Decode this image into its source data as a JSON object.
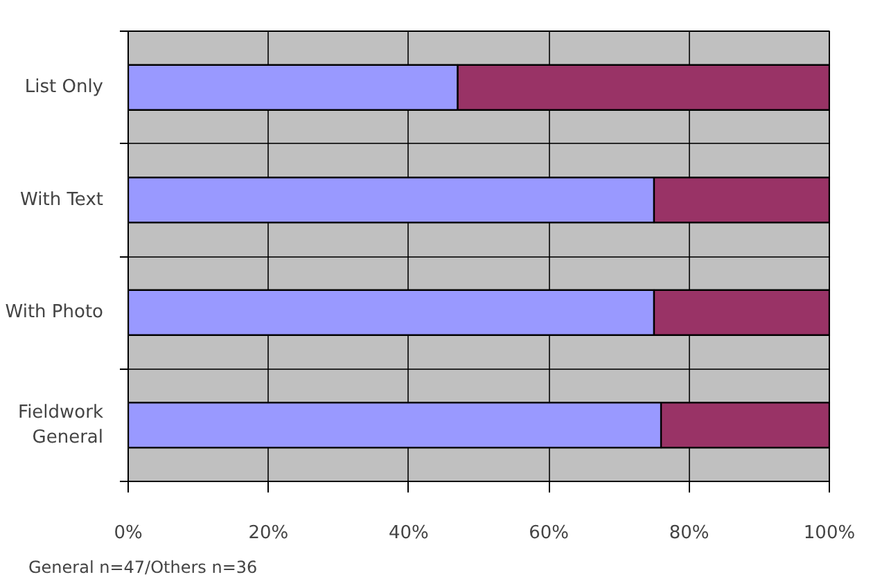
{
  "chart_data": {
    "type": "bar",
    "orientation": "horizontal",
    "stacked": true,
    "categories": [
      "List Only",
      "With Text",
      "With Photo",
      "Fieldwork\nGeneral"
    ],
    "series": [
      {
        "color": "#9999ff",
        "values": [
          47,
          75,
          75,
          76
        ]
      },
      {
        "color": "#993366",
        "values": [
          53,
          25,
          25,
          24
        ]
      }
    ],
    "xlim": [
      0,
      100
    ],
    "xticks": [
      {
        "value": 0,
        "label": "0%"
      },
      {
        "value": 20,
        "label": "20%"
      },
      {
        "value": 40,
        "label": "40%"
      },
      {
        "value": 60,
        "label": "60%"
      },
      {
        "value": 80,
        "label": "80%"
      },
      {
        "value": 100,
        "label": "100%"
      }
    ],
    "grid": true,
    "annotations": [
      "General n=47/Others n=36"
    ]
  }
}
